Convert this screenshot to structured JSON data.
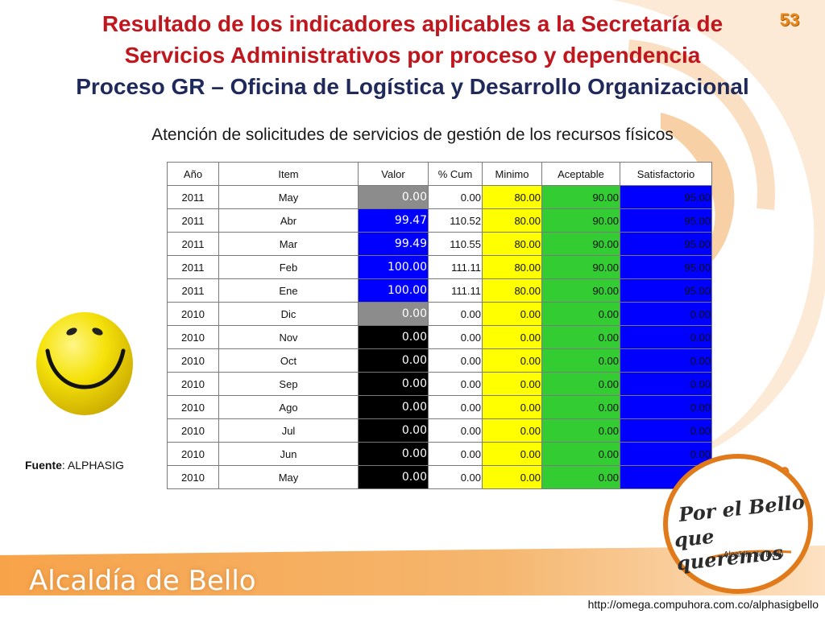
{
  "slide": {
    "page_number": "53",
    "title_line_1": "Resultado de los indicadores aplicables a la Secretaría de",
    "title_line_2": "Servicios Administrativos por proceso y dependencia",
    "title_line_3": "Proceso GR – Oficina de Logística y Desarrollo Organizacional",
    "subtitle": "Atención de solicitudes de servicios de gestión de los recursos físicos",
    "source_label": "Fuente",
    "source_value": ": ALPHASIG",
    "url": "http://omega.compuhora.com.co/alphasigbello",
    "brand": "Alcaldía de Bello",
    "logo_line_1": "Por el Bello",
    "logo_line_2": "que queremos",
    "logo_line_3": "Alcaldía de Bello"
  },
  "table": {
    "headers": [
      "Año",
      "Item",
      "Valor",
      "% Cum",
      "Minimo",
      "Aceptable",
      "Satisfactorio"
    ],
    "rows": [
      {
        "year": "2011",
        "item": "May",
        "valor": "0.00",
        "cum": "0.00",
        "minimo": "80.00",
        "aceptable": "90.00",
        "satisfactorio": "95.00",
        "status": "gray"
      },
      {
        "year": "2011",
        "item": "Abr",
        "valor": "99.47",
        "cum": "110.52",
        "minimo": "80.00",
        "aceptable": "90.00",
        "satisfactorio": "95.00",
        "status": "blue"
      },
      {
        "year": "2011",
        "item": "Mar",
        "valor": "99.49",
        "cum": "110.55",
        "minimo": "80.00",
        "aceptable": "90.00",
        "satisfactorio": "95.00",
        "status": "blue"
      },
      {
        "year": "2011",
        "item": "Feb",
        "valor": "100.00",
        "cum": "111.11",
        "minimo": "80.00",
        "aceptable": "90.00",
        "satisfactorio": "95.00",
        "status": "blue"
      },
      {
        "year": "2011",
        "item": "Ene",
        "valor": "100.00",
        "cum": "111.11",
        "minimo": "80.00",
        "aceptable": "90.00",
        "satisfactorio": "95.00",
        "status": "blue"
      },
      {
        "year": "2010",
        "item": "Dic",
        "valor": "0.00",
        "cum": "0.00",
        "minimo": "0.00",
        "aceptable": "0.00",
        "satisfactorio": "0.00",
        "status": "gray"
      },
      {
        "year": "2010",
        "item": "Nov",
        "valor": "0.00",
        "cum": "0.00",
        "minimo": "0.00",
        "aceptable": "0.00",
        "satisfactorio": "0.00",
        "status": "black"
      },
      {
        "year": "2010",
        "item": "Oct",
        "valor": "0.00",
        "cum": "0.00",
        "minimo": "0.00",
        "aceptable": "0.00",
        "satisfactorio": "0.00",
        "status": "black"
      },
      {
        "year": "2010",
        "item": "Sep",
        "valor": "0.00",
        "cum": "0.00",
        "minimo": "0.00",
        "aceptable": "0.00",
        "satisfactorio": "0.00",
        "status": "black"
      },
      {
        "year": "2010",
        "item": "Ago",
        "valor": "0.00",
        "cum": "0.00",
        "minimo": "0.00",
        "aceptable": "0.00",
        "satisfactorio": "0.00",
        "status": "black"
      },
      {
        "year": "2010",
        "item": "Jul",
        "valor": "0.00",
        "cum": "0.00",
        "minimo": "0.00",
        "aceptable": "0.00",
        "satisfactorio": "0.00",
        "status": "black"
      },
      {
        "year": "2010",
        "item": "Jun",
        "valor": "0.00",
        "cum": "0.00",
        "minimo": "0.00",
        "aceptable": "0.00",
        "satisfactorio": "0.00",
        "status": "black"
      },
      {
        "year": "2010",
        "item": "May",
        "valor": "0.00",
        "cum": "0.00",
        "minimo": "0.00",
        "aceptable": "0.00",
        "satisfactorio": "0.00",
        "status": "black"
      }
    ]
  },
  "colors": {
    "title_red": "#c0161d",
    "title_navy": "#1f2a5a",
    "minimo_fill": "#ffff00",
    "aceptable_fill": "#33cc33",
    "satisfactorio_fill": "#0000ff",
    "brand_orange": "#f08a1e"
  },
  "icons": {
    "smiley": "smiley-face-icon",
    "logo": "por-el-bello-logo"
  }
}
